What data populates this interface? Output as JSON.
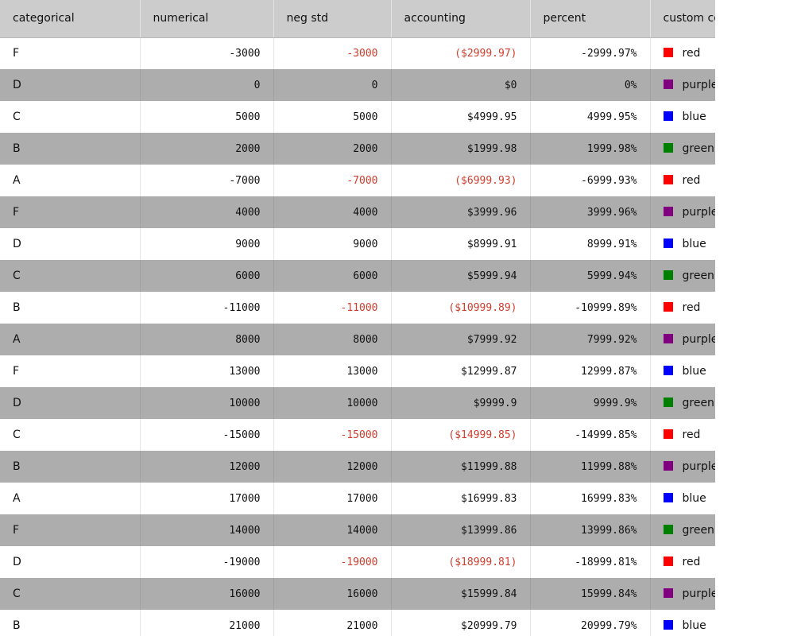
{
  "columns": [
    {
      "key": "categorical",
      "label": "categorical"
    },
    {
      "key": "numerical",
      "label": "numerical"
    },
    {
      "key": "neg_std",
      "label": "neg std"
    },
    {
      "key": "accounting",
      "label": "accounting"
    },
    {
      "key": "percent",
      "label": "percent"
    },
    {
      "key": "custom",
      "label": "custom colors"
    }
  ],
  "colors": {
    "red": "#ff0000",
    "purple": "#800080",
    "blue": "#0000ff",
    "green": "#008000",
    "negative_text": "#d23c2e",
    "header_bg": "#cccccc",
    "row_alt_bg": "#adadad"
  },
  "rows": [
    {
      "categorical": "F",
      "numerical": "-3000",
      "neg_std": "-3000",
      "accounting": "($2999.97)",
      "percent": "-2999.97%",
      "custom": "red",
      "negative": true
    },
    {
      "categorical": "D",
      "numerical": "0",
      "neg_std": "0",
      "accounting": "$0",
      "percent": "0%",
      "custom": "purple",
      "negative": false
    },
    {
      "categorical": "C",
      "numerical": "5000",
      "neg_std": "5000",
      "accounting": "$4999.95",
      "percent": "4999.95%",
      "custom": "blue",
      "negative": false
    },
    {
      "categorical": "B",
      "numerical": "2000",
      "neg_std": "2000",
      "accounting": "$1999.98",
      "percent": "1999.98%",
      "custom": "green",
      "negative": false
    },
    {
      "categorical": "A",
      "numerical": "-7000",
      "neg_std": "-7000",
      "accounting": "($6999.93)",
      "percent": "-6999.93%",
      "custom": "red",
      "negative": true
    },
    {
      "categorical": "F",
      "numerical": "4000",
      "neg_std": "4000",
      "accounting": "$3999.96",
      "percent": "3999.96%",
      "custom": "purple",
      "negative": false
    },
    {
      "categorical": "D",
      "numerical": "9000",
      "neg_std": "9000",
      "accounting": "$8999.91",
      "percent": "8999.91%",
      "custom": "blue",
      "negative": false
    },
    {
      "categorical": "C",
      "numerical": "6000",
      "neg_std": "6000",
      "accounting": "$5999.94",
      "percent": "5999.94%",
      "custom": "green",
      "negative": false
    },
    {
      "categorical": "B",
      "numerical": "-11000",
      "neg_std": "-11000",
      "accounting": "($10999.89)",
      "percent": "-10999.89%",
      "custom": "red",
      "negative": true
    },
    {
      "categorical": "A",
      "numerical": "8000",
      "neg_std": "8000",
      "accounting": "$7999.92",
      "percent": "7999.92%",
      "custom": "purple",
      "negative": false
    },
    {
      "categorical": "F",
      "numerical": "13000",
      "neg_std": "13000",
      "accounting": "$12999.87",
      "percent": "12999.87%",
      "custom": "blue",
      "negative": false
    },
    {
      "categorical": "D",
      "numerical": "10000",
      "neg_std": "10000",
      "accounting": "$9999.9",
      "percent": "9999.9%",
      "custom": "green",
      "negative": false
    },
    {
      "categorical": "C",
      "numerical": "-15000",
      "neg_std": "-15000",
      "accounting": "($14999.85)",
      "percent": "-14999.85%",
      "custom": "red",
      "negative": true
    },
    {
      "categorical": "B",
      "numerical": "12000",
      "neg_std": "12000",
      "accounting": "$11999.88",
      "percent": "11999.88%",
      "custom": "purple",
      "negative": false
    },
    {
      "categorical": "A",
      "numerical": "17000",
      "neg_std": "17000",
      "accounting": "$16999.83",
      "percent": "16999.83%",
      "custom": "blue",
      "negative": false
    },
    {
      "categorical": "F",
      "numerical": "14000",
      "neg_std": "14000",
      "accounting": "$13999.86",
      "percent": "13999.86%",
      "custom": "green",
      "negative": false
    },
    {
      "categorical": "D",
      "numerical": "-19000",
      "neg_std": "-19000",
      "accounting": "($18999.81)",
      "percent": "-18999.81%",
      "custom": "red",
      "negative": true
    },
    {
      "categorical": "C",
      "numerical": "16000",
      "neg_std": "16000",
      "accounting": "$15999.84",
      "percent": "15999.84%",
      "custom": "purple",
      "negative": false
    },
    {
      "categorical": "B",
      "numerical": "21000",
      "neg_std": "21000",
      "accounting": "$20999.79",
      "percent": "20999.79%",
      "custom": "blue",
      "negative": false
    }
  ]
}
